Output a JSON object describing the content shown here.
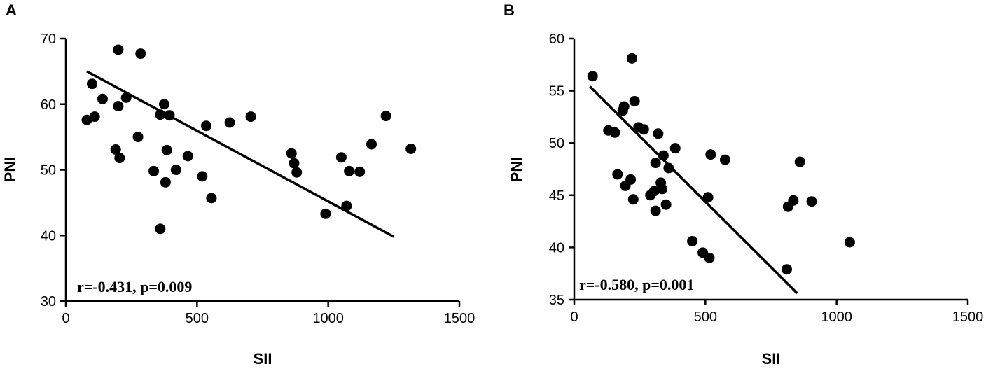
{
  "chart_data": [
    {
      "type": "scatter",
      "panel_label": "A",
      "xlabel": "SII",
      "ylabel": "PNI",
      "xlim": [
        0,
        1500
      ],
      "ylim": [
        30,
        70
      ],
      "x_ticks": [
        0,
        500,
        1000,
        1500
      ],
      "y_ticks": [
        30,
        40,
        50,
        60,
        70
      ],
      "annotation": "r=-0.431, p=0.009",
      "grid": false,
      "trendline": {
        "x": [
          80,
          1250
        ],
        "y": [
          65.0,
          39.8
        ]
      },
      "points": [
        {
          "x": 80,
          "y": 57.6
        },
        {
          "x": 100,
          "y": 63.1
        },
        {
          "x": 110,
          "y": 58.1
        },
        {
          "x": 140,
          "y": 60.8
        },
        {
          "x": 190,
          "y": 53.1
        },
        {
          "x": 200,
          "y": 68.3
        },
        {
          "x": 200,
          "y": 59.7
        },
        {
          "x": 205,
          "y": 51.8
        },
        {
          "x": 230,
          "y": 61.0
        },
        {
          "x": 275,
          "y": 55.0
        },
        {
          "x": 285,
          "y": 67.7
        },
        {
          "x": 335,
          "y": 49.8
        },
        {
          "x": 360,
          "y": 58.4
        },
        {
          "x": 360,
          "y": 41.0
        },
        {
          "x": 375,
          "y": 60.0
        },
        {
          "x": 380,
          "y": 48.1
        },
        {
          "x": 385,
          "y": 53.0
        },
        {
          "x": 395,
          "y": 58.3
        },
        {
          "x": 420,
          "y": 50.0
        },
        {
          "x": 465,
          "y": 52.1
        },
        {
          "x": 520,
          "y": 49.0
        },
        {
          "x": 535,
          "y": 56.7
        },
        {
          "x": 555,
          "y": 45.7
        },
        {
          "x": 625,
          "y": 57.2
        },
        {
          "x": 705,
          "y": 58.1
        },
        {
          "x": 860,
          "y": 52.5
        },
        {
          "x": 870,
          "y": 51.0
        },
        {
          "x": 880,
          "y": 49.6
        },
        {
          "x": 990,
          "y": 43.3
        },
        {
          "x": 1050,
          "y": 51.9
        },
        {
          "x": 1070,
          "y": 44.5
        },
        {
          "x": 1080,
          "y": 49.8
        },
        {
          "x": 1120,
          "y": 49.7
        },
        {
          "x": 1165,
          "y": 53.9
        },
        {
          "x": 1220,
          "y": 58.2
        },
        {
          "x": 1315,
          "y": 53.2
        }
      ]
    },
    {
      "type": "scatter",
      "panel_label": "B",
      "xlabel": "SII",
      "ylabel": "PNI",
      "xlim": [
        0,
        1500
      ],
      "ylim": [
        35,
        60
      ],
      "x_ticks": [
        0,
        500,
        1000,
        1500
      ],
      "y_ticks": [
        35,
        40,
        45,
        50,
        55,
        60
      ],
      "annotation": "r=-0.580, p=0.001",
      "grid": false,
      "trendline": {
        "x": [
          60,
          850
        ],
        "y": [
          55.4,
          35.6
        ]
      },
      "points": [
        {
          "x": 70,
          "y": 56.4
        },
        {
          "x": 130,
          "y": 51.2
        },
        {
          "x": 155,
          "y": 51.0
        },
        {
          "x": 165,
          "y": 47.0
        },
        {
          "x": 185,
          "y": 53.1
        },
        {
          "x": 190,
          "y": 53.5
        },
        {
          "x": 195,
          "y": 45.9
        },
        {
          "x": 215,
          "y": 46.5
        },
        {
          "x": 220,
          "y": 58.1
        },
        {
          "x": 225,
          "y": 44.6
        },
        {
          "x": 230,
          "y": 54.0
        },
        {
          "x": 245,
          "y": 51.5
        },
        {
          "x": 265,
          "y": 51.3
        },
        {
          "x": 290,
          "y": 45.0
        },
        {
          "x": 305,
          "y": 45.4
        },
        {
          "x": 310,
          "y": 48.1
        },
        {
          "x": 310,
          "y": 43.5
        },
        {
          "x": 320,
          "y": 50.9
        },
        {
          "x": 330,
          "y": 46.2
        },
        {
          "x": 335,
          "y": 45.6
        },
        {
          "x": 340,
          "y": 48.8
        },
        {
          "x": 350,
          "y": 44.1
        },
        {
          "x": 360,
          "y": 47.6
        },
        {
          "x": 385,
          "y": 49.5
        },
        {
          "x": 450,
          "y": 40.6
        },
        {
          "x": 490,
          "y": 39.5
        },
        {
          "x": 510,
          "y": 44.8
        },
        {
          "x": 515,
          "y": 39.0
        },
        {
          "x": 520,
          "y": 48.9
        },
        {
          "x": 575,
          "y": 48.4
        },
        {
          "x": 810,
          "y": 37.9
        },
        {
          "x": 815,
          "y": 43.9
        },
        {
          "x": 835,
          "y": 44.5
        },
        {
          "x": 860,
          "y": 48.2
        },
        {
          "x": 905,
          "y": 44.4
        },
        {
          "x": 1050,
          "y": 40.5
        }
      ]
    }
  ]
}
